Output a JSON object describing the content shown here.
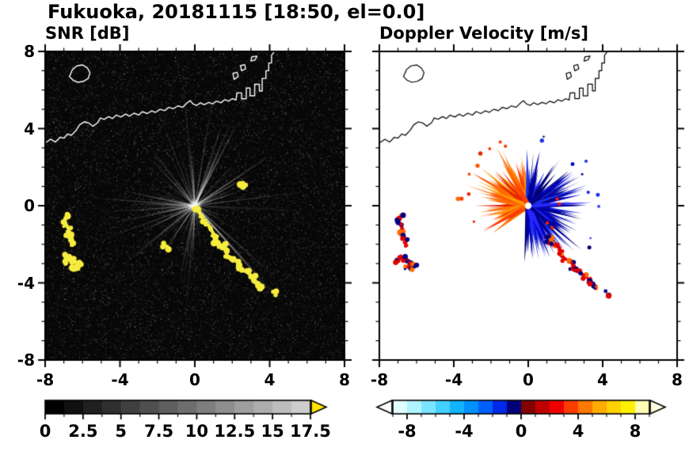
{
  "title": "Fukuoka, 20181115 [18:50, el=0.0]",
  "panels": [
    {
      "title": "SNR [dB]",
      "xtick_labels": [
        "-8",
        "-4",
        "0",
        "4",
        "8"
      ],
      "ytick_labels": [
        "8",
        "4",
        "0",
        "-4",
        "-8"
      ],
      "colorbar_labels": [
        "0",
        "2.5",
        "5",
        "7.5",
        "10",
        "12.5",
        "15",
        "17.5"
      ]
    },
    {
      "title": "Doppler Velocity [m/s]",
      "xtick_labels": [
        "-8",
        "-4",
        "0",
        "4",
        "8"
      ],
      "ytick_labels": [],
      "colorbar_labels": [
        "-8",
        "-4",
        "0",
        "4",
        "8"
      ]
    }
  ],
  "chart_data": [
    {
      "type": "heatmap",
      "title": "SNR [dB]",
      "xlim": [
        -8,
        8
      ],
      "ylim": [
        -8,
        8
      ],
      "xticks": [
        -8,
        -4,
        0,
        4,
        8
      ],
      "yticks": [
        -8,
        -4,
        0,
        4,
        8
      ],
      "background_color": "#070707",
      "coastline_color": "#ffffff",
      "radar_center": [
        0,
        0
      ],
      "colorbar": {
        "min": 0,
        "max": 17.5,
        "tick_labels": [
          "0",
          "2.5",
          "5",
          "7.5",
          "10",
          "12.5",
          "15",
          "17.5"
        ],
        "cell_colors": [
          "#000000",
          "#101010",
          "#202020",
          "#2f2f2f",
          "#3f3f3f",
          "#4f4f4f",
          "#5f5f5f",
          "#6e6e6e",
          "#7e7e7e",
          "#8e8e8e",
          "#9e9e9e",
          "#adadad",
          "#bdbdbd",
          "#cdcdcd"
        ],
        "over_color": "#ffe400"
      },
      "clutter": "gray radial ground-clutter rays emanating from radar at (0,0) over low-level speckle noise",
      "echoes": {
        "color": "#f6ec3e",
        "chains": [
          [
            [
              -6.85,
              -0.55
            ],
            [
              -6.95,
              -0.78
            ],
            [
              -6.88,
              -1.0
            ],
            [
              -6.74,
              -1.2
            ],
            [
              -6.8,
              -1.45
            ],
            [
              -6.64,
              -1.62
            ],
            [
              -6.55,
              -1.85
            ],
            [
              -6.6,
              -2.05
            ]
          ],
          [
            [
              -7.0,
              -2.9
            ],
            [
              -6.85,
              -2.6
            ],
            [
              -6.62,
              -2.72
            ],
            [
              -6.45,
              -2.82
            ],
            [
              -6.28,
              -3.0
            ],
            [
              -6.12,
              -3.1
            ],
            [
              -6.3,
              -3.25
            ],
            [
              -6.52,
              -3.18
            ]
          ],
          [
            [
              0.15,
              -0.25
            ],
            [
              0.35,
              -0.5
            ],
            [
              0.5,
              -0.78
            ],
            [
              0.7,
              -0.95
            ],
            [
              0.85,
              -1.2
            ],
            [
              1.0,
              -1.45
            ],
            [
              1.2,
              -1.6
            ],
            [
              1.1,
              -1.85
            ],
            [
              1.3,
              -2.0
            ],
            [
              1.55,
              -2.1
            ],
            [
              1.75,
              -2.3
            ],
            [
              1.7,
              -2.55
            ],
            [
              1.9,
              -2.7
            ],
            [
              2.15,
              -2.8
            ],
            [
              2.35,
              -3.0
            ],
            [
              2.3,
              -3.25
            ],
            [
              2.55,
              -3.35
            ],
            [
              2.8,
              -3.45
            ],
            [
              3.0,
              -3.6
            ],
            [
              3.2,
              -3.75
            ],
            [
              3.15,
              -3.95
            ],
            [
              3.4,
              -4.05
            ],
            [
              3.6,
              -4.2
            ]
          ],
          [
            [
              -1.6,
              -2.02
            ],
            [
              -1.48,
              -2.16
            ]
          ],
          [
            [
              2.52,
              1.18
            ],
            [
              2.6,
              1.0
            ]
          ],
          [
            [
              4.25,
              -4.55
            ]
          ]
        ]
      }
    },
    {
      "type": "heatmap",
      "title": "Doppler Velocity [m/s]",
      "xlim": [
        -8,
        8
      ],
      "ylim": [
        -8,
        8
      ],
      "xticks": [
        -8,
        -4,
        0,
        4,
        8
      ],
      "yticks": [
        -8,
        -4,
        0,
        4,
        8
      ],
      "background_color": "#ffffff",
      "coastline_color": "#000000",
      "radar_center": [
        0,
        0
      ],
      "colorbar": {
        "min": -9,
        "max": 9,
        "tick_labels": [
          "-8",
          "-4",
          "0",
          "4",
          "8"
        ],
        "cell_colors": [
          "#e0ffff",
          "#b0f4ff",
          "#7ce4ff",
          "#44d0ff",
          "#10b4ff",
          "#0090ff",
          "#0060ff",
          "#0028e8",
          "#000078",
          "#840000",
          "#c00000",
          "#f00000",
          "#ff3c00",
          "#ff7800",
          "#ffaa00",
          "#ffd200",
          "#fff000",
          "#fffcb4"
        ],
        "under_color": "#ffffff",
        "over_color": "#ffffe0"
      },
      "velocity_fan": {
        "toward_colors": [
          "#ff3c00",
          "#ff6f00",
          "#ff9a00",
          "#e62800",
          "#ff5400"
        ],
        "away_colors": [
          "#0000b8",
          "#00008b",
          "#1b30e8",
          "#000070",
          "#2626ff"
        ],
        "toward_angle_deg": [
          95,
          218
        ],
        "away_angle_deg": [
          -95,
          92
        ],
        "max_radius_km": 3.2
      },
      "boundary_specks": [
        [
          1.55,
          0.35
        ],
        [
          1.68,
          0.1
        ],
        [
          1.02,
          -0.9
        ],
        [
          1.3,
          -1.15
        ]
      ],
      "echoes": {
        "colors": [
          "#e00000",
          "#000080",
          "#ff6a00"
        ],
        "chains": [
          [
            [
              -6.85,
              -0.55
            ],
            [
              -6.95,
              -0.78
            ],
            [
              -6.88,
              -1.0
            ],
            [
              -6.74,
              -1.2
            ],
            [
              -6.8,
              -1.45
            ],
            [
              -6.64,
              -1.62
            ],
            [
              -6.55,
              -1.85
            ],
            [
              -6.6,
              -2.05
            ]
          ],
          [
            [
              -7.0,
              -2.9
            ],
            [
              -6.85,
              -2.6
            ],
            [
              -6.62,
              -2.72
            ],
            [
              -6.45,
              -2.82
            ],
            [
              -6.28,
              -3.0
            ],
            [
              -6.12,
              -3.1
            ],
            [
              -6.3,
              -3.25
            ],
            [
              -6.52,
              -3.18
            ]
          ],
          [
            [
              1.05,
              -1.55
            ],
            [
              1.2,
              -1.7
            ],
            [
              1.1,
              -1.9
            ],
            [
              1.35,
              -2.05
            ],
            [
              1.6,
              -2.15
            ],
            [
              1.8,
              -2.35
            ],
            [
              1.75,
              -2.6
            ],
            [
              1.95,
              -2.75
            ],
            [
              2.2,
              -2.85
            ],
            [
              2.4,
              -3.05
            ],
            [
              2.35,
              -3.3
            ],
            [
              2.6,
              -3.4
            ],
            [
              2.85,
              -3.5
            ],
            [
              3.05,
              -3.65
            ],
            [
              3.25,
              -3.8
            ],
            [
              3.2,
              -4.0
            ],
            [
              3.45,
              -4.1
            ],
            [
              3.65,
              -4.25
            ]
          ],
          [
            [
              4.25,
              -4.55
            ]
          ]
        ]
      }
    }
  ],
  "coastline": {
    "mainland": [
      [
        -8,
        3.25
      ],
      [
        -7.7,
        3.45
      ],
      [
        -7.45,
        3.3
      ],
      [
        -7.2,
        3.55
      ],
      [
        -7,
        3.5
      ],
      [
        -6.8,
        3.72
      ],
      [
        -6.6,
        3.65
      ],
      [
        -6.35,
        3.9
      ],
      [
        -6.15,
        4.2
      ],
      [
        -5.9,
        4.35
      ],
      [
        -5.65,
        4.28
      ],
      [
        -5.45,
        4.12
      ],
      [
        -5.2,
        4.3
      ],
      [
        -5.05,
        4.55
      ],
      [
        -4.85,
        4.48
      ],
      [
        -4.6,
        4.62
      ],
      [
        -4.4,
        4.52
      ],
      [
        -4.2,
        4.7
      ],
      [
        -3.95,
        4.6
      ],
      [
        -3.7,
        4.75
      ],
      [
        -3.5,
        4.64
      ],
      [
        -3.25,
        4.8
      ],
      [
        -3,
        4.7
      ],
      [
        -2.8,
        4.88
      ],
      [
        -2.55,
        4.78
      ],
      [
        -2.3,
        4.92
      ],
      [
        -2.1,
        4.84
      ],
      [
        -1.85,
        5
      ],
      [
        -1.6,
        4.93
      ],
      [
        -1.4,
        5.1
      ],
      [
        -1.15,
        5.03
      ],
      [
        -0.9,
        5.18
      ],
      [
        -0.65,
        5.1
      ],
      [
        -0.45,
        5.3
      ],
      [
        -0.25,
        5.45
      ],
      [
        -0.1,
        5.28
      ],
      [
        0.1,
        5.2
      ],
      [
        0.3,
        5.34
      ],
      [
        0.5,
        5.24
      ],
      [
        0.75,
        5.36
      ],
      [
        0.95,
        5.28
      ],
      [
        1.15,
        5.42
      ],
      [
        1.4,
        5.34
      ],
      [
        1.6,
        5.5
      ],
      [
        1.8,
        5.42
      ],
      [
        2,
        5.55
      ],
      [
        2.2,
        5.48
      ],
      [
        2.25,
        5.85
      ],
      [
        2.5,
        5.85
      ],
      [
        2.5,
        5.55
      ],
      [
        2.75,
        5.55
      ],
      [
        2.75,
        6.1
      ],
      [
        2.95,
        6.1
      ],
      [
        2.95,
        5.7
      ],
      [
        3.2,
        5.7
      ],
      [
        3.2,
        6.3
      ],
      [
        3.45,
        6.3
      ],
      [
        3.45,
        5.95
      ],
      [
        3.6,
        5.95
      ],
      [
        3.6,
        6.6
      ],
      [
        3.8,
        6.6
      ],
      [
        3.8,
        7
      ],
      [
        3.95,
        7
      ],
      [
        3.95,
        7.4
      ],
      [
        4.1,
        7.4
      ],
      [
        4.1,
        7.8
      ],
      [
        4.3,
        8.05
      ]
    ],
    "island": [
      [
        -6.7,
        6.7
      ],
      [
        -6.55,
        7.05
      ],
      [
        -6.3,
        7.25
      ],
      [
        -6,
        7.3
      ],
      [
        -5.75,
        7.15
      ],
      [
        -5.6,
        6.9
      ],
      [
        -5.7,
        6.6
      ],
      [
        -5.95,
        6.45
      ],
      [
        -6.25,
        6.4
      ],
      [
        -6.5,
        6.5
      ]
    ],
    "islets": [
      [
        [
          2.1,
          6.55
        ],
        [
          2.32,
          6.7
        ],
        [
          2.26,
          6.92
        ],
        [
          2.04,
          6.86
        ]
      ],
      [
        [
          2.5,
          7.0
        ],
        [
          2.72,
          7.1
        ],
        [
          2.66,
          7.32
        ],
        [
          2.44,
          7.26
        ]
      ],
      [
        [
          3.0,
          7.5
        ],
        [
          3.22,
          7.56
        ],
        [
          3.32,
          7.76
        ],
        [
          3.04,
          7.72
        ]
      ]
    ]
  }
}
